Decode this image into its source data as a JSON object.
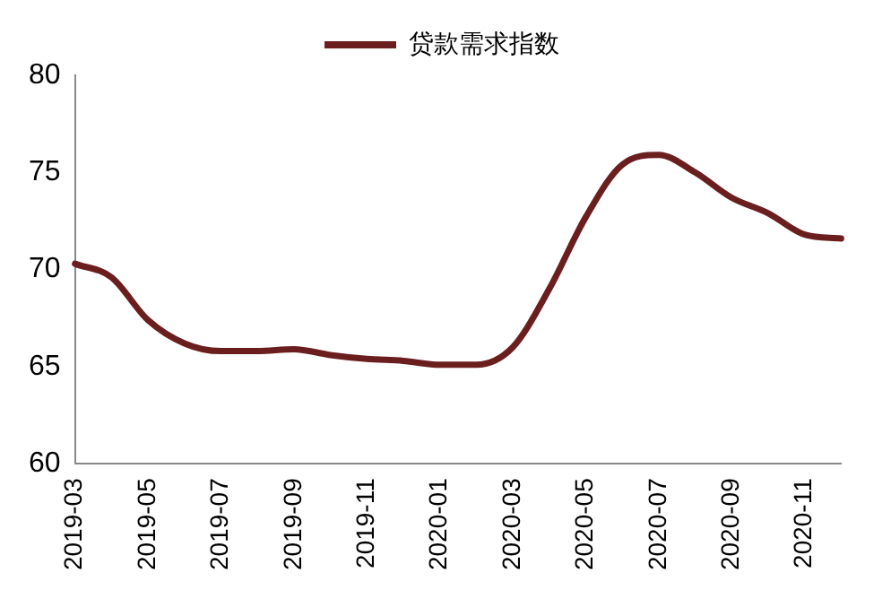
{
  "chart_data": {
    "type": "line",
    "categories": [
      "2019-03",
      null,
      "2019-05",
      null,
      "2019-07",
      null,
      "2019-09",
      null,
      "2019-11",
      null,
      "2020-01",
      null,
      "2020-03",
      null,
      "2020-05",
      null,
      "2020-07",
      null,
      "2020-09",
      null,
      "2020-11",
      null
    ],
    "series": [
      {
        "name": "贷款需求指数",
        "color": "#6b1e1e",
        "values": [
          70.3,
          69.6,
          67.4,
          66.2,
          65.8,
          65.8,
          65.9,
          65.6,
          65.4,
          65.3,
          65.1,
          65.1,
          66.0,
          69.0,
          72.7,
          75.4,
          75.9,
          75.0,
          73.7,
          72.9,
          71.8,
          71.6
        ]
      }
    ],
    "ylim": [
      60,
      80
    ],
    "yticks": [
      60,
      65,
      70,
      75,
      80
    ],
    "grid": false,
    "legend": "top",
    "marker": "none",
    "line_style": "solid"
  }
}
